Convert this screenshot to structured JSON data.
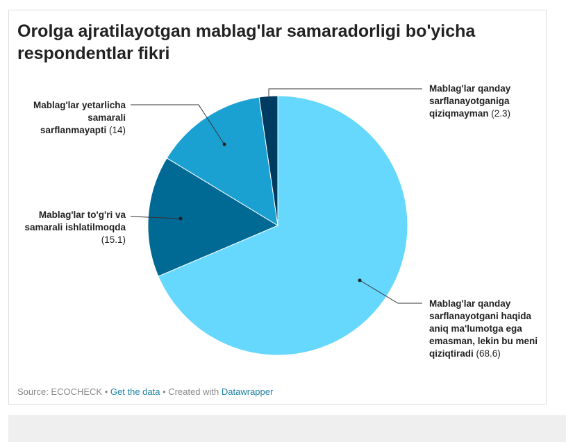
{
  "chart_data": {
    "type": "pie",
    "title": "Orolga ajratilayotgan mablag'lar samaradorligi bo'yicha respondentlar fikri",
    "categories": [
      "Mablag'lar qanday sarflanayotgani haqida aniq ma'lumotga ega emasman, lekin bu meni qiziqtiradi",
      "Mablag'lar to'g'ri va samarali ishlatilmoqda",
      "Mablag'lar yetarlicha samarali sarflanmayapti",
      "Mablag'lar qanday sarflanayotganiga qiziqmayman"
    ],
    "values": [
      68.6,
      15.1,
      14,
      2.3
    ],
    "value_labels": [
      "(68.6)",
      "(15.1)",
      "(14)",
      "(2.3)"
    ],
    "colors": [
      "#66d7fd",
      "#006994",
      "#1ba1d1",
      "#003c61"
    ]
  },
  "footer": {
    "source": "Source: ECOCHECK",
    "separator": "•",
    "get_data": "Get the data",
    "created_with": "Created with",
    "tool": "Datawrapper"
  }
}
